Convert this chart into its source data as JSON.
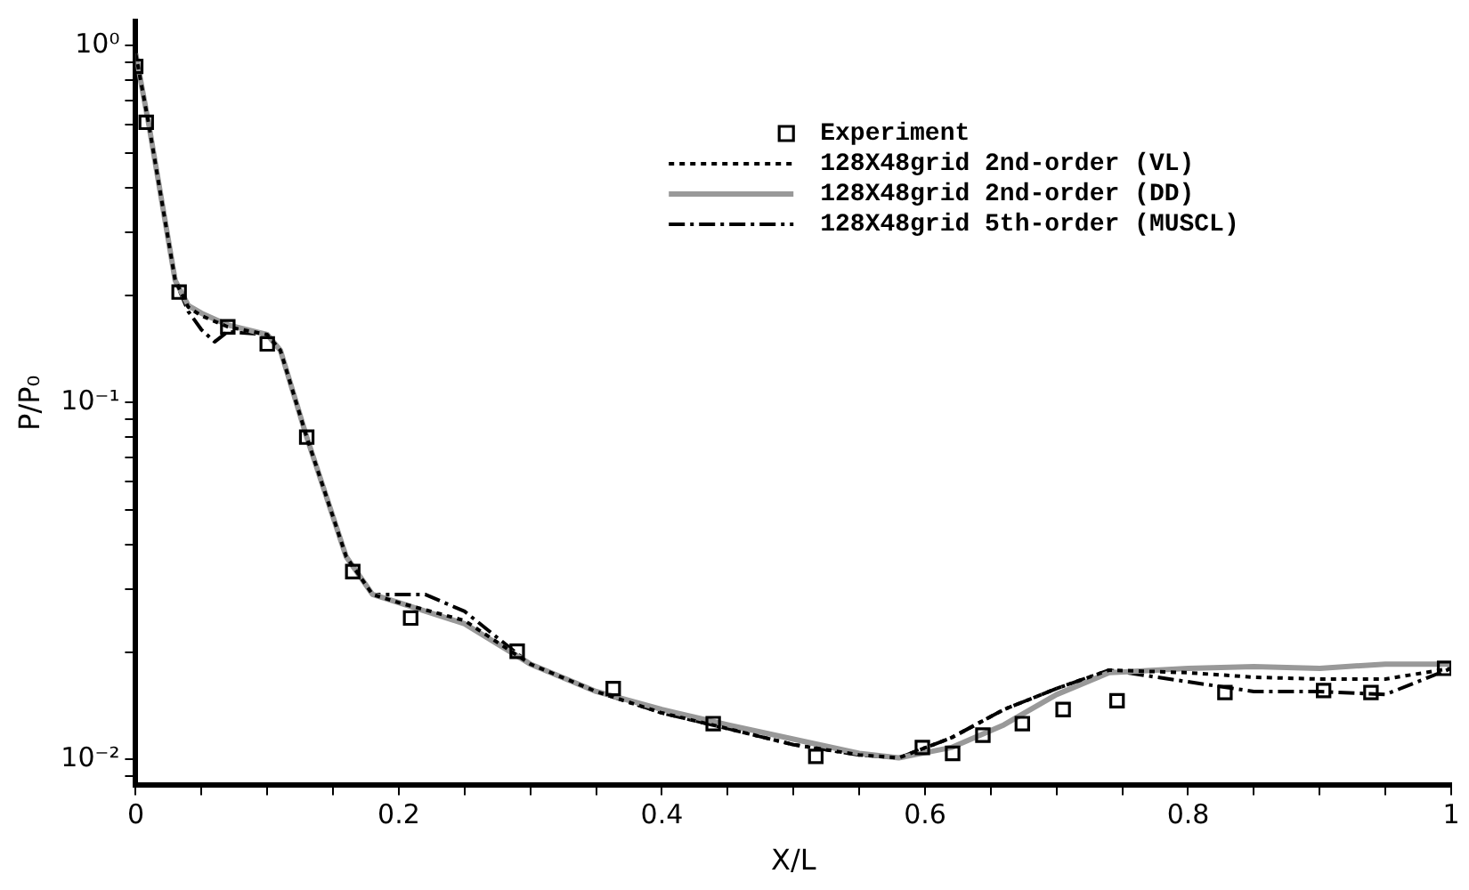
{
  "chart_data": {
    "type": "line",
    "xlabel": "X/L",
    "ylabel": "P/P₀",
    "log": "y",
    "grid": false,
    "legend": "top",
    "xlim": [
      0,
      1
    ],
    "ylim": [
      0.0085,
      1.17
    ],
    "xticks": [
      0,
      {
        "value": 0.05,
        "label": null
      },
      {
        "value": 0.1,
        "label": null
      },
      {
        "value": 0.15,
        "label": null
      },
      0.2,
      {
        "value": 0.25,
        "label": null
      },
      {
        "value": 0.3,
        "label": null
      },
      {
        "value": 0.35,
        "label": null
      },
      0.4,
      {
        "value": 0.45,
        "label": null
      },
      {
        "value": 0.5,
        "label": null
      },
      {
        "value": 0.55,
        "label": null
      },
      0.6,
      {
        "value": 0.65,
        "label": null
      },
      {
        "value": 0.7,
        "label": null
      },
      {
        "value": 0.75,
        "label": null
      },
      0.8,
      {
        "value": 0.85,
        "label": null
      },
      {
        "value": 0.9,
        "label": null
      },
      {
        "value": 0.95,
        "label": null
      },
      1
    ],
    "yticks": [
      {
        "value": 0.009,
        "label": null
      },
      {
        "value": 0.01,
        "label": "10⁻²"
      },
      {
        "value": 0.02,
        "label": null
      },
      {
        "value": 0.03,
        "label": null
      },
      {
        "value": 0.04,
        "label": null
      },
      {
        "value": 0.05,
        "label": null
      },
      {
        "value": 0.06,
        "label": null
      },
      {
        "value": 0.07,
        "label": null
      },
      {
        "value": 0.08,
        "label": null
      },
      {
        "value": 0.09,
        "label": null
      },
      {
        "value": 0.1,
        "label": "10⁻¹"
      },
      {
        "value": 0.2,
        "label": null
      },
      {
        "value": 0.3,
        "label": null
      },
      {
        "value": 0.4,
        "label": null
      },
      {
        "value": 0.5,
        "label": null
      },
      {
        "value": 0.6,
        "label": null
      },
      {
        "value": 0.7,
        "label": null
      },
      {
        "value": 0.8,
        "label": null
      },
      {
        "value": 0.9,
        "label": null
      },
      {
        "value": 1,
        "label": "10⁰"
      }
    ],
    "series": [
      {
        "name": "Experiment",
        "type": "scatter",
        "marker": "square",
        "color": "#000000",
        "x": [
          0,
          0.008,
          0.033,
          0.07,
          0.1,
          0.13,
          0.165,
          0.209,
          0.29,
          0.363,
          0.439,
          0.517,
          0.598,
          0.621,
          0.644,
          0.674,
          0.705,
          0.746,
          0.828,
          0.903,
          0.939,
          0.995
        ],
        "values": [
          0.875,
          0.61,
          0.204,
          0.163,
          0.146,
          0.08,
          0.0336,
          0.0249,
          0.0201,
          0.0158,
          0.0126,
          0.0102,
          0.0108,
          0.0104,
          0.0117,
          0.0126,
          0.0138,
          0.0146,
          0.0154,
          0.0156,
          0.0154,
          0.018
        ]
      },
      {
        "name": "128X48grid 2nd-order (VL)",
        "line_style": "dotted",
        "marker": "none",
        "color": "#000000",
        "x": [
          0,
          0.01,
          0.03,
          0.04,
          0.05,
          0.07,
          0.1,
          0.11,
          0.13,
          0.16,
          0.18,
          0.2,
          0.25,
          0.3,
          0.35,
          0.4,
          0.45,
          0.5,
          0.55,
          0.58,
          0.62,
          0.66,
          0.7,
          0.74,
          0.8,
          0.85,
          0.9,
          0.95,
          1
        ],
        "values": [
          0.95,
          0.6,
          0.22,
          0.185,
          0.175,
          0.163,
          0.155,
          0.14,
          0.08,
          0.037,
          0.029,
          0.0275,
          0.0245,
          0.0185,
          0.0155,
          0.0135,
          0.0122,
          0.011,
          0.0103,
          0.0101,
          0.0115,
          0.0138,
          0.0158,
          0.0178,
          0.0175,
          0.017,
          0.0168,
          0.0168,
          0.018
        ]
      },
      {
        "name": "128X48grid 2nd-order (DD)",
        "line_style": "solid",
        "marker": "none",
        "color": "#999999",
        "x": [
          0,
          0.01,
          0.03,
          0.04,
          0.05,
          0.07,
          0.1,
          0.11,
          0.13,
          0.16,
          0.18,
          0.2,
          0.25,
          0.3,
          0.35,
          0.4,
          0.45,
          0.5,
          0.55,
          0.58,
          0.62,
          0.66,
          0.7,
          0.74,
          0.8,
          0.85,
          0.9,
          0.95,
          1
        ],
        "values": [
          0.95,
          0.6,
          0.22,
          0.187,
          0.178,
          0.165,
          0.155,
          0.14,
          0.08,
          0.037,
          0.029,
          0.0275,
          0.024,
          0.0185,
          0.0155,
          0.0138,
          0.0125,
          0.0114,
          0.0104,
          0.0101,
          0.0108,
          0.0125,
          0.0152,
          0.0175,
          0.018,
          0.0182,
          0.018,
          0.0185,
          0.0185
        ]
      },
      {
        "name": "128X48grid 5th-order (MUSCL)",
        "line_style": "dashed",
        "marker": "none",
        "color": "#000000",
        "x": [
          0,
          0.01,
          0.03,
          0.04,
          0.05,
          0.06,
          0.07,
          0.1,
          0.11,
          0.13,
          0.16,
          0.18,
          0.2,
          0.22,
          0.25,
          0.3,
          0.35,
          0.4,
          0.45,
          0.5,
          0.55,
          0.58,
          0.62,
          0.66,
          0.7,
          0.74,
          0.8,
          0.85,
          0.9,
          0.95,
          1
        ],
        "values": [
          0.95,
          0.6,
          0.22,
          0.18,
          0.16,
          0.148,
          0.158,
          0.155,
          0.14,
          0.08,
          0.037,
          0.029,
          0.029,
          0.029,
          0.026,
          0.0185,
          0.0155,
          0.0135,
          0.0122,
          0.011,
          0.0103,
          0.0101,
          0.0115,
          0.0138,
          0.0158,
          0.0178,
          0.0165,
          0.0155,
          0.0155,
          0.0152,
          0.018
        ]
      }
    ]
  }
}
